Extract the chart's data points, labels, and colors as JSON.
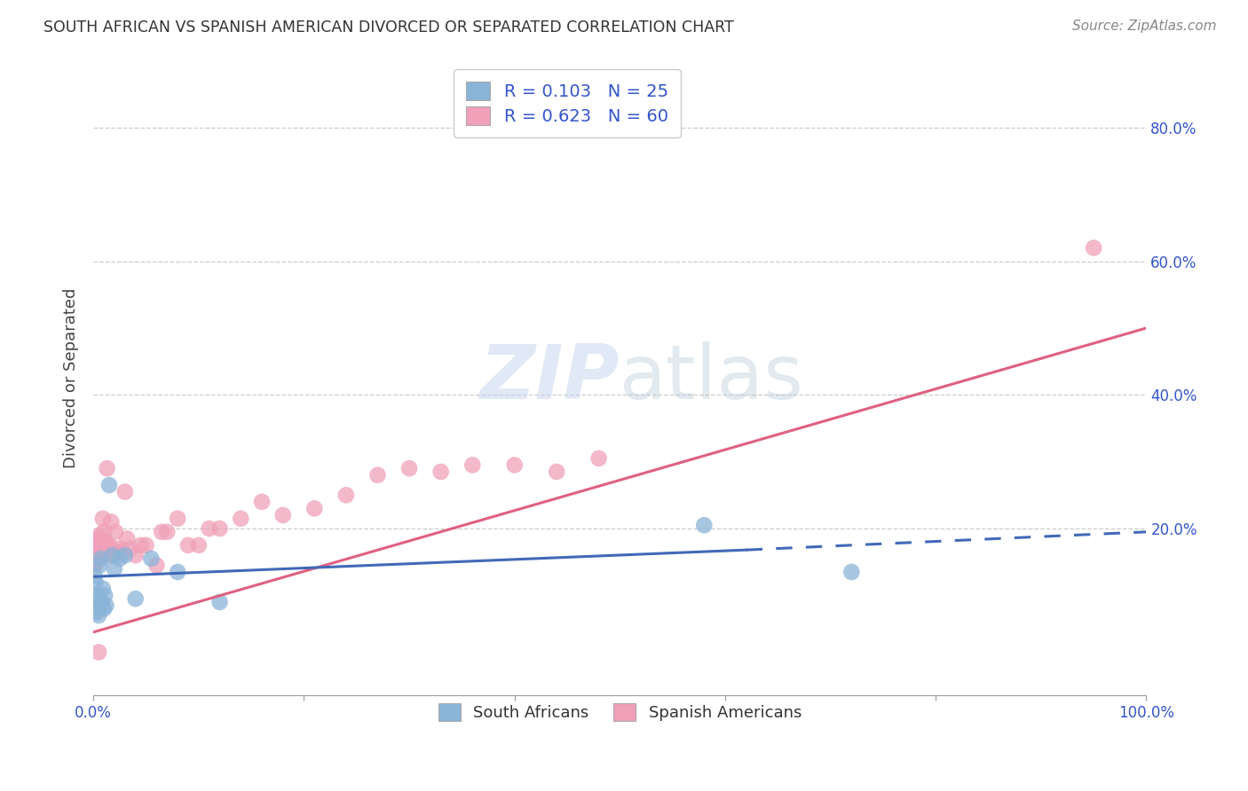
{
  "title": "SOUTH AFRICAN VS SPANISH AMERICAN DIVORCED OR SEPARATED CORRELATION CHART",
  "source": "Source: ZipAtlas.com",
  "ylabel": "Divorced or Separated",
  "xlim": [
    0,
    1.0
  ],
  "ylim": [
    -0.05,
    0.9
  ],
  "x_tick_labels": [
    "0.0%",
    "",
    "",
    "",
    "",
    "100.0%"
  ],
  "x_tick_vals": [
    0.0,
    0.2,
    0.4,
    0.6,
    0.8,
    1.0
  ],
  "y_tick_labels": [
    "20.0%",
    "40.0%",
    "60.0%",
    "80.0%"
  ],
  "y_tick_vals": [
    0.2,
    0.4,
    0.6,
    0.8
  ],
  "grid_color": "#cccccc",
  "bg_color": "#ffffff",
  "blue_color": "#8ab4d8",
  "pink_color": "#f0a0b8",
  "blue_line_color": "#4169b8",
  "pink_line_color": "#e06080",
  "blue_R": 0.103,
  "blue_N": 25,
  "pink_R": 0.623,
  "pink_N": 60,
  "blue_scatter_x": [
    0.001,
    0.002,
    0.003,
    0.003,
    0.004,
    0.005,
    0.005,
    0.006,
    0.007,
    0.008,
    0.009,
    0.01,
    0.011,
    0.012,
    0.015,
    0.018,
    0.02,
    0.025,
    0.03,
    0.04,
    0.055,
    0.08,
    0.12,
    0.58,
    0.72
  ],
  "blue_scatter_y": [
    0.13,
    0.12,
    0.095,
    0.075,
    0.1,
    0.085,
    0.07,
    0.145,
    0.155,
    0.09,
    0.11,
    0.08,
    0.1,
    0.085,
    0.265,
    0.16,
    0.14,
    0.155,
    0.16,
    0.095,
    0.155,
    0.135,
    0.09,
    0.205,
    0.135
  ],
  "pink_scatter_x": [
    0.001,
    0.001,
    0.002,
    0.002,
    0.003,
    0.003,
    0.003,
    0.004,
    0.005,
    0.005,
    0.006,
    0.006,
    0.007,
    0.007,
    0.008,
    0.008,
    0.009,
    0.01,
    0.01,
    0.011,
    0.012,
    0.013,
    0.014,
    0.015,
    0.016,
    0.017,
    0.018,
    0.02,
    0.021,
    0.022,
    0.025,
    0.028,
    0.03,
    0.032,
    0.035,
    0.04,
    0.045,
    0.05,
    0.06,
    0.065,
    0.07,
    0.08,
    0.09,
    0.1,
    0.11,
    0.12,
    0.14,
    0.16,
    0.18,
    0.21,
    0.24,
    0.27,
    0.3,
    0.33,
    0.36,
    0.4,
    0.44,
    0.48,
    0.95,
    0.005
  ],
  "pink_scatter_y": [
    0.155,
    0.145,
    0.175,
    0.16,
    0.17,
    0.165,
    0.15,
    0.18,
    0.185,
    0.16,
    0.19,
    0.17,
    0.18,
    0.165,
    0.175,
    0.16,
    0.215,
    0.16,
    0.195,
    0.175,
    0.18,
    0.29,
    0.165,
    0.175,
    0.16,
    0.21,
    0.165,
    0.165,
    0.195,
    0.165,
    0.17,
    0.165,
    0.255,
    0.185,
    0.17,
    0.16,
    0.175,
    0.175,
    0.145,
    0.195,
    0.195,
    0.215,
    0.175,
    0.175,
    0.2,
    0.2,
    0.215,
    0.24,
    0.22,
    0.23,
    0.25,
    0.28,
    0.29,
    0.285,
    0.295,
    0.295,
    0.285,
    0.305,
    0.62,
    0.015
  ],
  "pink_line_x0": 0.0,
  "pink_line_y0": 0.045,
  "pink_line_x1": 1.0,
  "pink_line_y1": 0.5,
  "blue_line_solid_x0": 0.0,
  "blue_line_solid_y0": 0.128,
  "blue_line_solid_x1": 0.62,
  "blue_line_solid_y1": 0.168,
  "blue_line_dash_x0": 0.62,
  "blue_line_dash_y0": 0.168,
  "blue_line_dash_x1": 1.0,
  "blue_line_dash_y1": 0.195
}
